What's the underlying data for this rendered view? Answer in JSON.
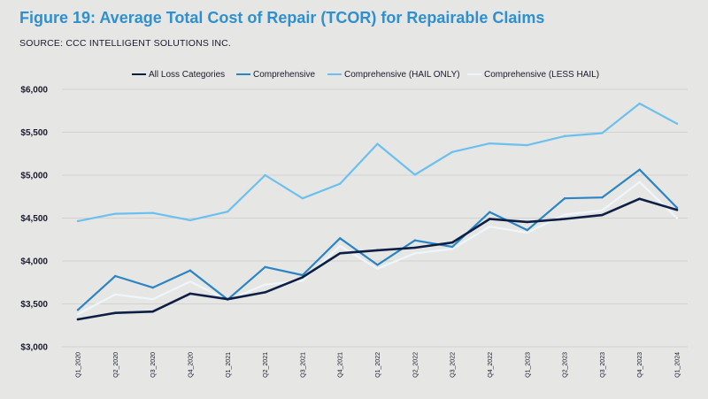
{
  "header": {
    "title": "Figure 19: Average Total Cost of Repair (TCOR) for Repairable Claims",
    "source": "SOURCE: CCC INTELLIGENT SOLUTIONS INC."
  },
  "colors": {
    "background": "#e6e6e4",
    "title": "#2f8fcf",
    "grid": "#d2d2d0"
  },
  "chart_data": {
    "type": "line",
    "title": "Figure 19: Average Total Cost of Repair (TCOR) for Repairable Claims",
    "xlabel": "",
    "ylabel": "",
    "ylim": [
      3000,
      6000
    ],
    "yticks": [
      3000,
      3500,
      4000,
      4500,
      5000,
      5500,
      6000
    ],
    "ytick_labels": [
      "$3,000",
      "$3,500",
      "$4,000",
      "$4,500",
      "$5,000",
      "$5,500",
      "$6,000"
    ],
    "grid": true,
    "legend_position": "top-center",
    "categories": [
      "Q1_2020",
      "Q2_2020",
      "Q3_2020",
      "Q4_2020",
      "Q1_2021",
      "Q2_2021",
      "Q3_2021",
      "Q4_2021",
      "Q1_2022",
      "Q2_2022",
      "Q3_2022",
      "Q4_2022",
      "Q1_2023",
      "Q2_2023",
      "Q3_2023",
      "Q4_2023",
      "Q1_2024"
    ],
    "series": [
      {
        "name": "All Loss Categories",
        "color": "#0d1f45",
        "values": [
          3320,
          3395,
          3410,
          3620,
          3555,
          3635,
          3810,
          4090,
          4125,
          4155,
          4215,
          4490,
          4455,
          4490,
          4535,
          4725,
          4595
        ]
      },
      {
        "name": "Comprehensive",
        "color": "#2a84c6",
        "values": [
          3430,
          3825,
          3690,
          3890,
          3550,
          3930,
          3835,
          4265,
          3955,
          4240,
          4165,
          4570,
          4360,
          4730,
          4740,
          5065,
          4620
        ]
      },
      {
        "name": "Comprehensive (HAIL ONLY)",
        "color": "#6cc0f0",
        "values": [
          4465,
          4550,
          4560,
          4475,
          4575,
          5000,
          4730,
          4900,
          5365,
          5005,
          5270,
          5370,
          5350,
          5455,
          5490,
          5835,
          5600
        ]
      },
      {
        "name": "Comprehensive (LESS HAIL)",
        "color": "#eef6fb",
        "values": [
          3380,
          3610,
          3555,
          3760,
          3545,
          3725,
          3770,
          4175,
          3910,
          4090,
          4140,
          4400,
          4330,
          4540,
          4590,
          4920,
          4500
        ]
      }
    ]
  }
}
